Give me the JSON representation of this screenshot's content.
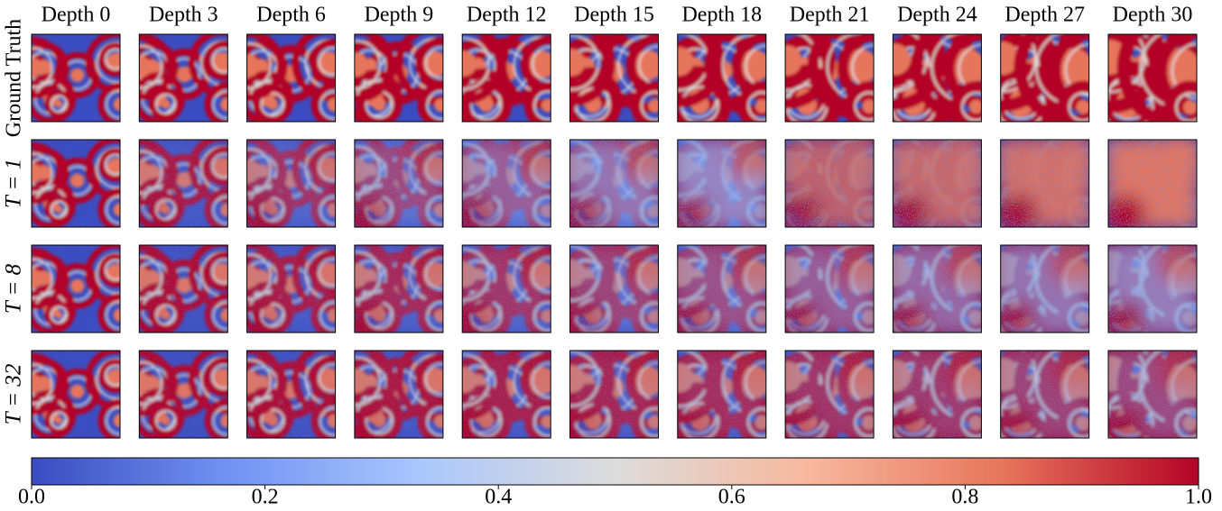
{
  "chart_data": {
    "type": "image-grid",
    "columns": [
      "Depth 0",
      "Depth 3",
      "Depth 6",
      "Depth 9",
      "Depth 12",
      "Depth 15",
      "Depth 18",
      "Depth 21",
      "Depth 24",
      "Depth 27",
      "Depth 30"
    ],
    "rows": [
      "Ground Truth",
      "T = 1",
      "T = 8",
      "T = 32"
    ],
    "colormap": [
      "#3b4cc0",
      "#6f92f3",
      "#aac7fd",
      "#dddcdc",
      "#f7b89c",
      "#e7745b",
      "#b40426"
    ],
    "clim": [
      0,
      1
    ],
    "cticks": [
      {
        "value": 0,
        "label": "0.0"
      },
      {
        "value": 0.2,
        "label": "0.2"
      },
      {
        "value": 0.4,
        "label": "0.4"
      },
      {
        "value": 0.6,
        "label": "0.6"
      },
      {
        "value": 0.8,
        "label": "0.8"
      },
      {
        "value": 1,
        "label": "1.0"
      }
    ]
  }
}
